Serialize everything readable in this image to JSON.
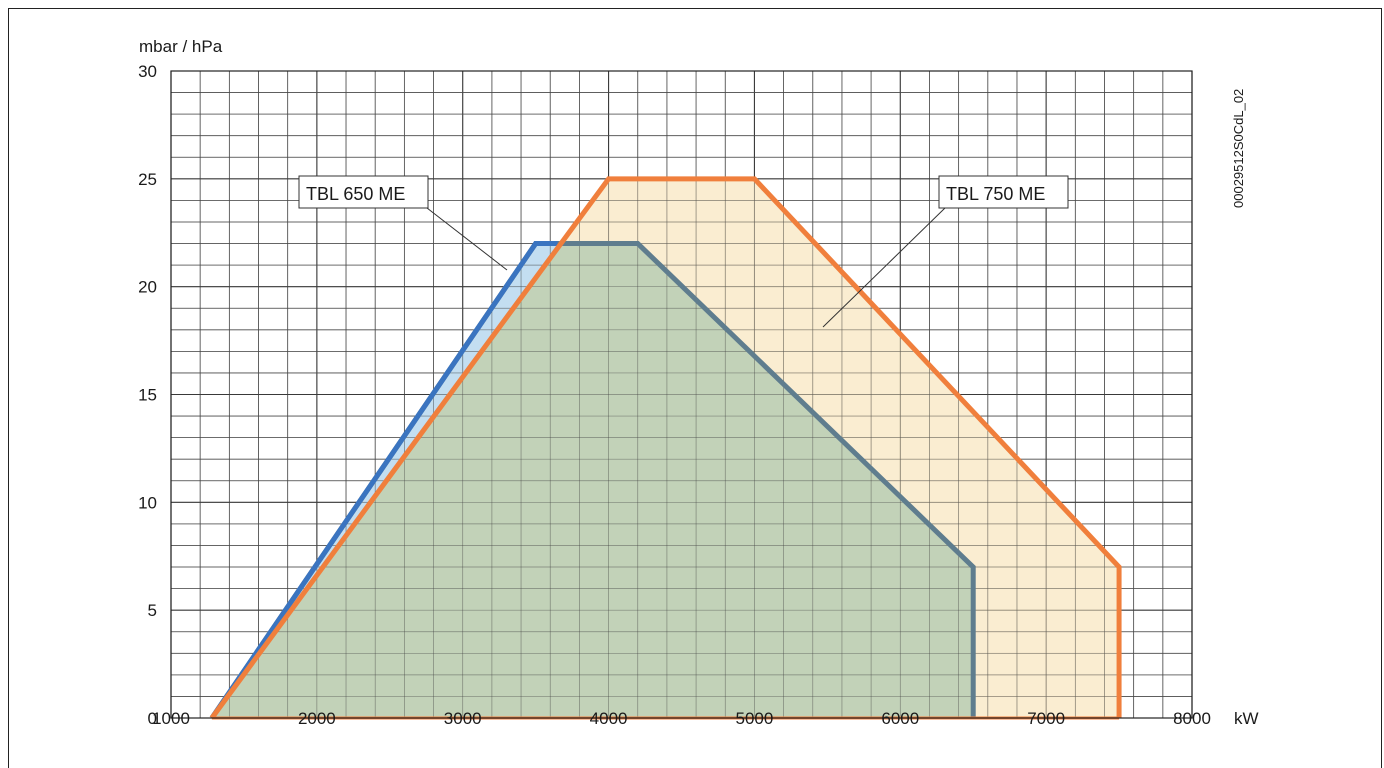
{
  "chart_data": {
    "type": "area",
    "ylabel": "mbar / hPa",
    "xlabel": "kW",
    "xlim": [
      1000,
      8000
    ],
    "ylim": [
      0,
      30
    ],
    "xticks": [
      1000,
      2000,
      3000,
      4000,
      5000,
      6000,
      7000,
      8000
    ],
    "yticks": [
      0,
      5,
      10,
      15,
      20,
      25,
      30
    ],
    "grid": true,
    "drawing_code": "00029512S0CdL_02",
    "series": [
      {
        "name": "TBL 650 ME",
        "x": [
          1280,
          3500,
          4200,
          6500,
          6500
        ],
        "y": [
          0,
          22,
          22,
          7,
          0
        ],
        "line_color": "#5f7d8e",
        "left_edge_color": "#3a74c0",
        "fill_color": "#b9d8ee",
        "overlap_fill_color": "#c2d2b8"
      },
      {
        "name": "TBL 750 ME",
        "x": [
          1280,
          4000,
          5000,
          7500,
          7500
        ],
        "y": [
          0,
          25,
          25,
          7,
          0
        ],
        "line_color": "#f07f3c",
        "fill_color": "#f9e8c4"
      }
    ]
  },
  "labels": {
    "ylabel": "mbar / hPa",
    "xunit": "kW",
    "code": "00029512S0CdL_02",
    "s650": "TBL 650 ME",
    "s750": "TBL 750 ME"
  }
}
